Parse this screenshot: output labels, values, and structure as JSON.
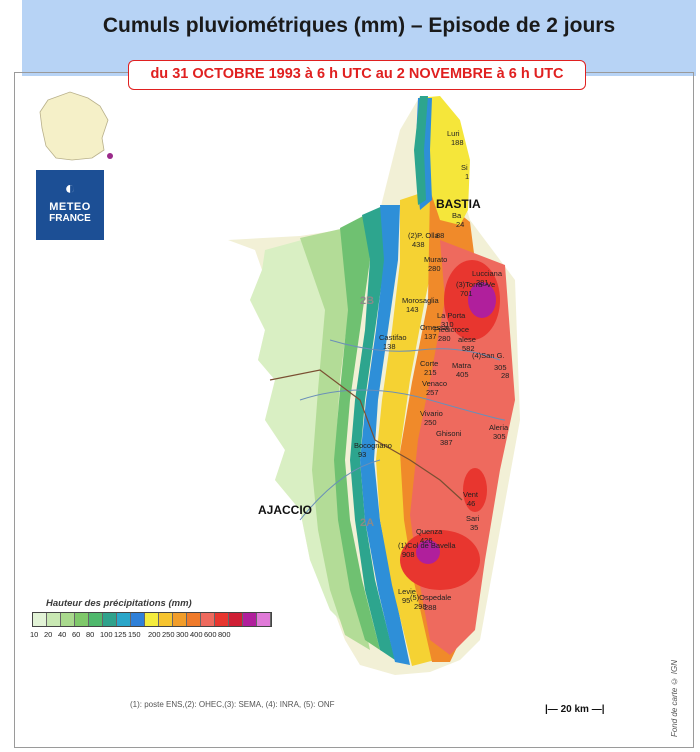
{
  "header": {
    "title": "Cumuls pluviométriques (mm) – Episode de 2 jours",
    "subtitle": "du 31 OCTOBRE 1993 à 6 h UTC au 2 NOVEMBRE à 6 h UTC"
  },
  "logo": {
    "line1": "METEO",
    "line2": "FRANCE",
    "symbol": "◐"
  },
  "cities": {
    "bastia": "BASTIA",
    "ajaccio": "AJACCIO"
  },
  "departments": {
    "north": "2B",
    "south": "2A"
  },
  "stations": [
    {
      "name": "Luri",
      "value": "188"
    },
    {
      "name": "Si",
      "value": "1"
    },
    {
      "name": "Ba",
      "value": "24"
    },
    {
      "name": "(2)P. Olla",
      "value": "438"
    },
    {
      "name": "",
      "value": "88"
    },
    {
      "name": "Murato",
      "value": "280"
    },
    {
      "name": "Lucciana",
      "value": "381"
    },
    {
      "name": "(3)Torra–Ve",
      "value": "701"
    },
    {
      "name": "Morosaglia",
      "value": "143"
    },
    {
      "name": "La Porta",
      "value": "310"
    },
    {
      "name": "Omessa",
      "value": "137"
    },
    {
      "name": "Piedicroce",
      "value": "280"
    },
    {
      "name": "Castifao",
      "value": "138"
    },
    {
      "name": "alese",
      "value": "582"
    },
    {
      "name": "(4)San G.",
      "value": ""
    },
    {
      "name": "Corte",
      "value": "215"
    },
    {
      "name": "Matra",
      "value": "405"
    },
    {
      "name": "",
      "value": "305"
    },
    {
      "name": "",
      "value": "28"
    },
    {
      "name": "Venaco",
      "value": "257"
    },
    {
      "name": "Vivario",
      "value": "250"
    },
    {
      "name": "Aleria",
      "value": "305"
    },
    {
      "name": "Ghisoni",
      "value": "387"
    },
    {
      "name": "Bocognano",
      "value": "93"
    },
    {
      "name": "Vent",
      "value": "46"
    },
    {
      "name": "Sari",
      "value": "35"
    },
    {
      "name": "Quenza",
      "value": "426"
    },
    {
      "name": "(1)Col de Bavella",
      "value": "908"
    },
    {
      "name": "Levie",
      "value": ""
    },
    {
      "name": "",
      "value": "95"
    },
    {
      "name": "(5)Ospedale",
      "value": "298"
    },
    {
      "name": "",
      "value": "288"
    }
  ],
  "legend": {
    "title": "Hauteur des précipitations (mm)",
    "colors": [
      "#e2f3d6",
      "#c9e8b3",
      "#a9d98d",
      "#7fc86a",
      "#4fb86c",
      "#2fa28c",
      "#2aa6c9",
      "#2f80d8",
      "#f4ec3d",
      "#f6c42f",
      "#f19d2a",
      "#ef7a2a",
      "#ee6a5e",
      "#e8362f",
      "#cf1f35",
      "#b01f9c",
      "#e07ad8"
    ],
    "labels": [
      "10",
      "20",
      "40",
      "60",
      "80",
      "100",
      "125",
      "150",
      "200",
      "250",
      "300",
      "400",
      "600",
      "800"
    ]
  },
  "note": "(1): poste ENS,(2): OHEC,(3): SEMA, (4): INRA, (5): ONF",
  "scale": {
    "label": "20 km"
  },
  "credit": "Fond de carte © IGN"
}
